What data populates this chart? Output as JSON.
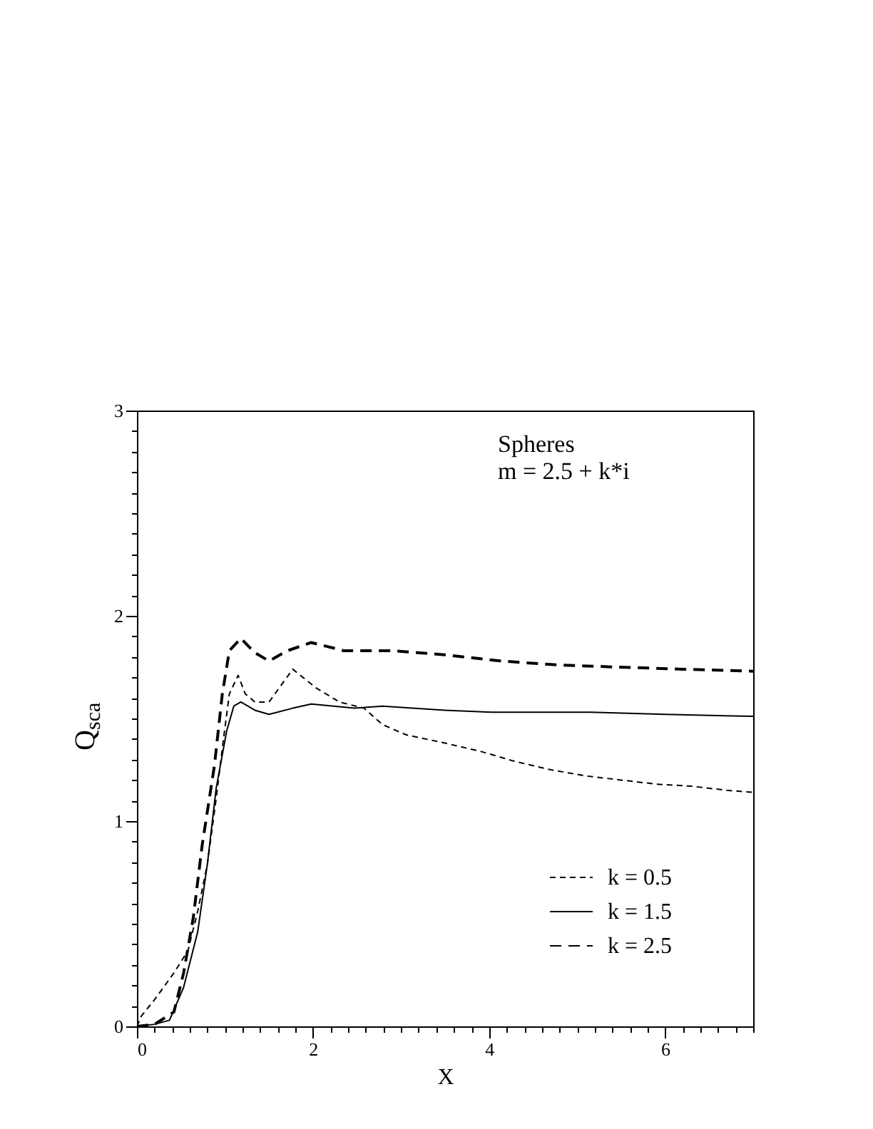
{
  "chart_data": {
    "type": "line",
    "xlabel": "X",
    "ylabel": "Q$_{sca}$",
    "annotations": [
      "Spheres",
      "m  =  2.5  +  k*i"
    ],
    "xlim": [
      0,
      7
    ],
    "ylim": [
      0,
      3
    ],
    "xticks": [
      0,
      {
        "value": 0.2,
        "label": null
      },
      {
        "value": 0.4,
        "label": null
      },
      {
        "value": 0.6,
        "label": null
      },
      {
        "value": 0.8,
        "label": null
      },
      {
        "value": 1,
        "label": null
      },
      {
        "value": 1.2,
        "label": null
      },
      {
        "value": 1.4,
        "label": null
      },
      {
        "value": 1.6,
        "label": null
      },
      {
        "value": 1.8,
        "label": null
      },
      2,
      {
        "value": 2.2,
        "label": null
      },
      {
        "value": 2.4,
        "label": null
      },
      {
        "value": 2.6,
        "label": null
      },
      {
        "value": 2.8,
        "label": null
      },
      {
        "value": 3,
        "label": null
      },
      {
        "value": 3.2,
        "label": null
      },
      {
        "value": 3.4,
        "label": null
      },
      {
        "value": 3.6,
        "label": null
      },
      {
        "value": 3.8,
        "label": null
      },
      4,
      {
        "value": 4.2,
        "label": null
      },
      {
        "value": 4.4,
        "label": null
      },
      {
        "value": 4.6,
        "label": null
      },
      {
        "value": 4.8,
        "label": null
      },
      {
        "value": 5,
        "label": null
      },
      {
        "value": 5.2,
        "label": null
      },
      {
        "value": 5.4,
        "label": null
      },
      {
        "value": 5.6,
        "label": null
      },
      {
        "value": 5.8,
        "label": null
      },
      6,
      {
        "value": 6.2,
        "label": null
      },
      {
        "value": 6.4,
        "label": null
      },
      {
        "value": 6.6,
        "label": null
      },
      {
        "value": 6.8,
        "label": null
      },
      {
        "value": 7,
        "label": null
      }
    ],
    "yticks": [
      0,
      {
        "value": 0.1,
        "label": null
      },
      {
        "value": 0.2,
        "label": null
      },
      {
        "value": 0.3,
        "label": null
      },
      {
        "value": 0.4,
        "label": null
      },
      {
        "value": 0.5,
        "label": null
      },
      {
        "value": 0.6,
        "label": null
      },
      {
        "value": 0.7,
        "label": null
      },
      {
        "value": 0.8,
        "label": null
      },
      {
        "value": 0.9,
        "label": null
      },
      1,
      {
        "value": 1.1,
        "label": null
      },
      {
        "value": 1.2,
        "label": null
      },
      {
        "value": 1.3,
        "label": null
      },
      {
        "value": 1.4,
        "label": null
      },
      {
        "value": 1.5,
        "label": null
      },
      {
        "value": 1.6,
        "label": null
      },
      {
        "value": 1.7,
        "label": null
      },
      {
        "value": 1.8,
        "label": null
      },
      {
        "value": 1.9,
        "label": null
      },
      2,
      {
        "value": 2.1,
        "label": null
      },
      {
        "value": 2.2,
        "label": null
      },
      {
        "value": 2.3,
        "label": null
      },
      {
        "value": 2.4,
        "label": null
      },
      {
        "value": 2.5,
        "label": null
      },
      {
        "value": 2.6,
        "label": null
      },
      {
        "value": 2.7,
        "label": null
      },
      {
        "value": 2.8,
        "label": null
      },
      {
        "value": 2.9,
        "label": null
      },
      3
    ],
    "grid": false,
    "legend": "bottom right",
    "series": [
      {
        "name": "k  =  0.5",
        "color": "#000000",
        "line_style": "dotted",
        "x": [
          0,
          0.05,
          0.2,
          0.42,
          0.58,
          0.69,
          0.8,
          0.9,
          0.98,
          1.05,
          1.15,
          1.23,
          1.34,
          1.5,
          1.77,
          2.03,
          2.3,
          2.58,
          2.79,
          3.06,
          3.5,
          3.9,
          4.3,
          4.7,
          5.1,
          5.5,
          5.9,
          6.3,
          6.7,
          7.0
        ],
        "values": [
          0,
          0.05,
          0.13,
          0.26,
          0.37,
          0.56,
          0.79,
          1.11,
          1.39,
          1.62,
          1.71,
          1.62,
          1.58,
          1.58,
          1.74,
          1.65,
          1.58,
          1.55,
          1.47,
          1.42,
          1.38,
          1.34,
          1.29,
          1.25,
          1.22,
          1.2,
          1.18,
          1.17,
          1.15,
          1.14
        ]
      },
      {
        "name": "k  =  1.5",
        "color": "#000000",
        "line_style": "solid",
        "x": [
          0,
          0.2,
          0.37,
          0.53,
          0.69,
          0.8,
          0.9,
          1.02,
          1.1,
          1.18,
          1.34,
          1.5,
          1.77,
          1.98,
          2.47,
          2.79,
          3.5,
          4.03,
          5.16,
          6.0,
          7.0
        ],
        "values": [
          0,
          0.01,
          0.03,
          0.19,
          0.46,
          0.79,
          1.16,
          1.44,
          1.56,
          1.58,
          1.54,
          1.52,
          1.55,
          1.57,
          1.55,
          1.56,
          1.54,
          1.53,
          1.53,
          1.52,
          1.51
        ]
      },
      {
        "name": "k  =  2.5",
        "color": "#000000",
        "line_style": "dashed",
        "x": [
          0,
          0.2,
          0.42,
          0.53,
          0.64,
          0.74,
          0.88,
          0.97,
          1.05,
          1.18,
          1.34,
          1.5,
          1.71,
          1.98,
          2.35,
          2.9,
          3.5,
          4.13,
          4.8,
          5.48,
          6.2,
          7.0
        ],
        "values": [
          0,
          0.01,
          0.07,
          0.26,
          0.53,
          0.88,
          1.27,
          1.62,
          1.83,
          1.89,
          1.82,
          1.78,
          1.83,
          1.87,
          1.83,
          1.83,
          1.81,
          1.78,
          1.76,
          1.75,
          1.74,
          1.73
        ]
      }
    ]
  }
}
